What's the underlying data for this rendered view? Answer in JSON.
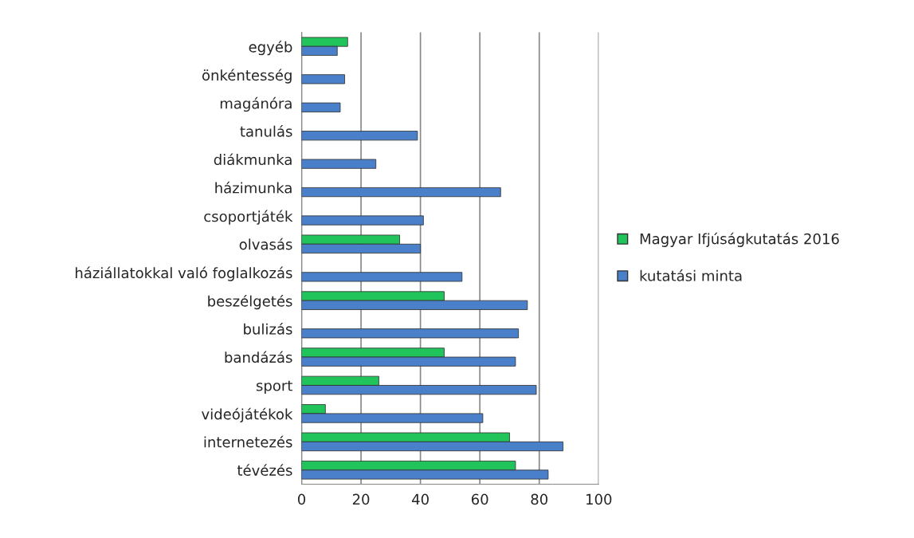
{
  "chart_data": {
    "type": "bar",
    "orientation": "horizontal",
    "categories": [
      "egyéb",
      "önkéntesség",
      "magánóra",
      "tanulás",
      "diákmunka",
      "házimunka",
      "csoportjáték",
      "olvasás",
      "háziállatokkal való foglalkozás",
      "beszélgetés",
      "bulizás",
      "bandázás",
      "sport",
      "videójátékok",
      "internetezés",
      "tévézés"
    ],
    "series": [
      {
        "name": "Magyar Ifjúságkutatás 2016",
        "color": "#21c45a",
        "values": [
          15.5,
          null,
          null,
          null,
          null,
          null,
          null,
          33,
          null,
          48,
          null,
          48,
          26,
          8,
          70,
          72
        ]
      },
      {
        "name": "kutatási minta",
        "color": "#4a7fc9",
        "values": [
          12,
          14.5,
          13,
          39,
          25,
          67,
          41,
          40,
          54,
          76,
          73,
          72,
          79,
          61,
          88,
          83
        ]
      }
    ],
    "xlim": [
      0,
      100
    ],
    "xticks": [
      0,
      20,
      40,
      60,
      80,
      100
    ],
    "grid": "x",
    "legend": "right"
  }
}
